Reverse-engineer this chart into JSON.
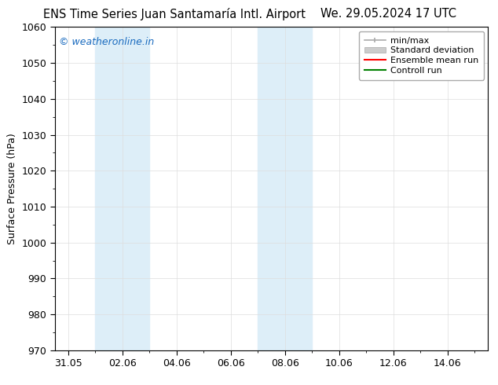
{
  "title_left": "ENS Time Series Juan Santamaría Intl. Airport",
  "title_right": "We. 29.05.2024 17 UTC",
  "ylabel": "Surface Pressure (hPa)",
  "ylim": [
    970,
    1060
  ],
  "yticks": [
    970,
    980,
    990,
    1000,
    1010,
    1020,
    1030,
    1040,
    1050,
    1060
  ],
  "xlim": [
    0.5,
    16.5
  ],
  "xtick_labels": [
    "31.05",
    "02.06",
    "04.06",
    "06.06",
    "08.06",
    "10.06",
    "12.06",
    "14.06"
  ],
  "xtick_positions": [
    1,
    3,
    5,
    7,
    9,
    11,
    13,
    15
  ],
  "shaded_bands": [
    {
      "x_start": 2.0,
      "x_end": 4.0
    },
    {
      "x_start": 8.0,
      "x_end": 10.0
    }
  ],
  "shaded_color": "#ddeef8",
  "watermark_text": "© weatheronline.in",
  "watermark_color": "#1a6bbf",
  "bg_color": "#ffffff",
  "spine_color": "#000000",
  "grid_color": "#cccccc",
  "font_size_title": 10.5,
  "font_size_axis": 9,
  "font_size_ticks": 9,
  "font_size_legend": 8,
  "font_size_watermark": 9
}
